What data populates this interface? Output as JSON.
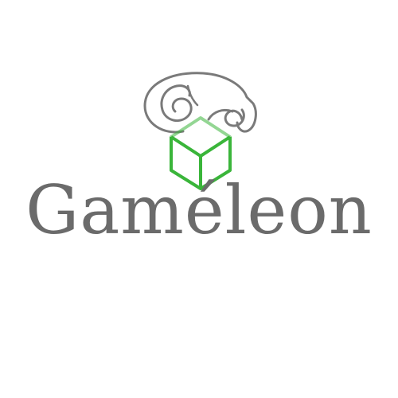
{
  "brand": {
    "name": "Gaméleon",
    "text_color": "#6b6b6b",
    "outline_color": "#7a7a7a",
    "cube_color": "#3ab53a"
  },
  "icons": {
    "chameleon": "chameleon-icon",
    "cube": "cube-icon"
  }
}
